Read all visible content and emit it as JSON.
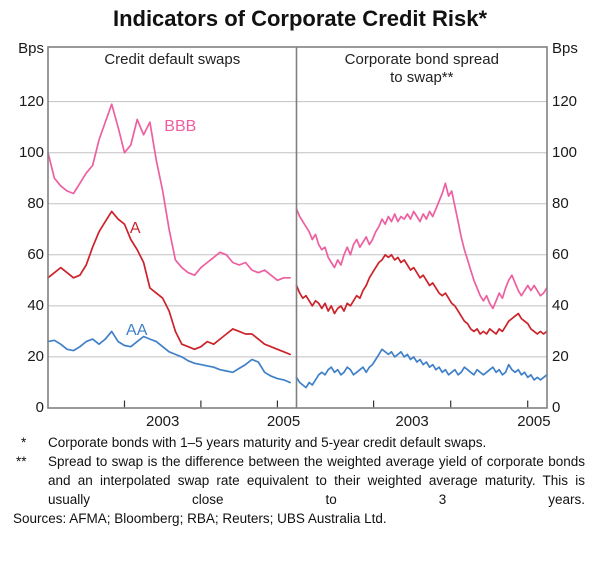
{
  "chart_data": {
    "type": "line",
    "title": "Indicators of Corporate Credit Risk*",
    "unit_label": "Bps",
    "ylim": [
      0,
      141.4
    ],
    "y_gridlines": [
      20,
      40,
      60,
      80,
      100,
      120
    ],
    "y_tick_labels": [
      "0",
      "20",
      "40",
      "60",
      "80",
      "100",
      "120"
    ],
    "colors": {
      "bbb": "#ee5fa0",
      "a": "#cc2229",
      "aa": "#4080c8",
      "grid": "#c1c1c7",
      "frame": "#808080",
      "tick": "#333333"
    },
    "panels": [
      {
        "caption_lines": [
          "Credit default swaps"
        ],
        "xlim": [
          2002,
          2005.25
        ],
        "x_ticks": [
          2003,
          2004,
          2005
        ],
        "x_tick_labels": [
          {
            "text": "2003",
            "year": 2003.5
          },
          {
            "text": "2005",
            "year": 2005.08
          }
        ],
        "series": [
          {
            "name": "BBB",
            "color_key": "bbb",
            "label": {
              "text": "BBB",
              "year": 2003.73,
              "bps": 110
            },
            "start": 2002,
            "step": 0.083333,
            "values": [
              100,
              90,
              87,
              85,
              84,
              88,
              92,
              95,
              105,
              112,
              119,
              110,
              100,
              103,
              113,
              107,
              112,
              97,
              85,
              70,
              58,
              55,
              53,
              52,
              55,
              57,
              59,
              61,
              60,
              57,
              56,
              57,
              54,
              53,
              54,
              52,
              50,
              51,
              51
            ]
          },
          {
            "name": "A",
            "color_key": "a",
            "label": {
              "text": "A",
              "year": 2003.14,
              "bps": 70
            },
            "start": 2002,
            "step": 0.083333,
            "values": [
              51,
              53,
              55,
              53,
              51,
              52,
              56,
              63,
              69,
              73,
              77,
              74,
              72,
              66,
              62,
              57,
              47,
              45,
              43,
              38,
              30,
              25,
              24,
              23,
              24,
              26,
              25,
              27,
              29,
              31,
              30,
              29,
              29,
              27,
              25,
              24,
              23,
              22,
              21
            ]
          },
          {
            "name": "AA",
            "color_key": "aa",
            "label": {
              "text": "AA",
              "year": 2003.16,
              "bps": 30
            },
            "start": 2002,
            "step": 0.083333,
            "values": [
              26,
              26.5,
              25,
              23,
              22.5,
              24,
              26,
              27,
              25,
              27,
              30,
              26,
              24.5,
              24,
              26,
              28,
              27,
              26,
              24,
              22,
              21,
              20,
              18.5,
              17.5,
              17,
              16.5,
              16,
              15,
              14.5,
              14,
              15.5,
              17,
              19,
              18,
              14,
              12.5,
              11.5,
              11,
              10
            ]
          }
        ]
      },
      {
        "caption_lines": [
          "Corporate bond spread",
          "to swap**"
        ],
        "xlim": [
          2002,
          2005.25
        ],
        "x_ticks": [
          2003,
          2004,
          2005
        ],
        "x_tick_labels": [
          {
            "text": "2003",
            "year": 2003.5
          },
          {
            "text": "2005",
            "year": 2005.08
          }
        ],
        "series": [
          {
            "name": "BBB",
            "color_key": "bbb",
            "start": 2002,
            "step": 0.0411,
            "values": [
              78,
              75,
              73,
              71,
              69,
              66,
              68,
              64,
              62,
              63,
              59,
              57,
              55,
              58,
              56,
              60,
              63,
              60,
              64,
              66,
              63,
              65,
              67,
              64,
              66,
              69,
              71,
              74,
              72,
              75,
              73,
              76,
              73,
              75,
              74,
              76,
              74,
              77,
              75,
              73,
              76,
              74,
              77,
              75,
              78,
              81,
              84,
              88,
              83,
              85,
              79,
              73,
              67,
              62,
              58,
              54,
              50,
              47,
              44,
              42,
              44,
              41,
              39,
              42,
              45,
              43,
              47,
              50,
              52,
              49,
              46,
              44,
              46,
              48,
              46,
              48,
              46,
              44,
              45,
              47
            ]
          },
          {
            "name": "A",
            "color_key": "a",
            "start": 2002,
            "step": 0.0411,
            "values": [
              48,
              45,
              43,
              44,
              42,
              40,
              42,
              41,
              39,
              41,
              38,
              40,
              37,
              39,
              40,
              38,
              41,
              40,
              42,
              44,
              43,
              46,
              48,
              51,
              53,
              55,
              57,
              58,
              60,
              59,
              60,
              58,
              59,
              57,
              58,
              56,
              54,
              55,
              53,
              51,
              52,
              50,
              48,
              49,
              47,
              45,
              44,
              45,
              43,
              41,
              40,
              38,
              36,
              34,
              33,
              31,
              30,
              31,
              29,
              30,
              29,
              31,
              30,
              29,
              31,
              30,
              32,
              34,
              35,
              36,
              37,
              35,
              34,
              33,
              31,
              30,
              29,
              30,
              29,
              30
            ]
          },
          {
            "name": "AA",
            "color_key": "aa",
            "start": 2002,
            "step": 0.0411,
            "values": [
              12,
              10,
              9,
              8,
              10,
              9,
              11,
              13,
              14,
              13,
              15,
              16,
              14,
              15,
              13,
              14,
              16,
              15,
              13,
              14,
              15,
              16,
              14,
              16,
              17,
              19,
              21,
              23,
              22,
              21,
              22,
              20,
              21,
              22,
              20,
              21,
              19,
              20,
              18,
              19,
              17,
              18,
              16,
              17,
              15,
              16,
              14,
              15,
              13,
              14,
              15,
              13,
              14,
              16,
              15,
              14,
              13,
              15,
              14,
              13,
              14,
              15,
              16,
              14,
              15,
              13,
              14,
              17,
              15,
              14,
              15,
              13,
              14,
              12,
              13,
              11,
              12,
              11,
              12,
              13
            ]
          }
        ]
      }
    ]
  },
  "footnotes": [
    {
      "marker": "*",
      "text": "Corporate bonds with 1–5 years maturity and 5-year credit default swaps."
    },
    {
      "marker": "**",
      "text": "Spread to swap is the difference between the weighted average yield of corporate bonds and an interpolated swap rate equivalent to their weighted average maturity. This is usually close to 3 years."
    }
  ],
  "sources": "Sources: AFMA; Bloomberg; RBA; Reuters; UBS Australia Ltd."
}
